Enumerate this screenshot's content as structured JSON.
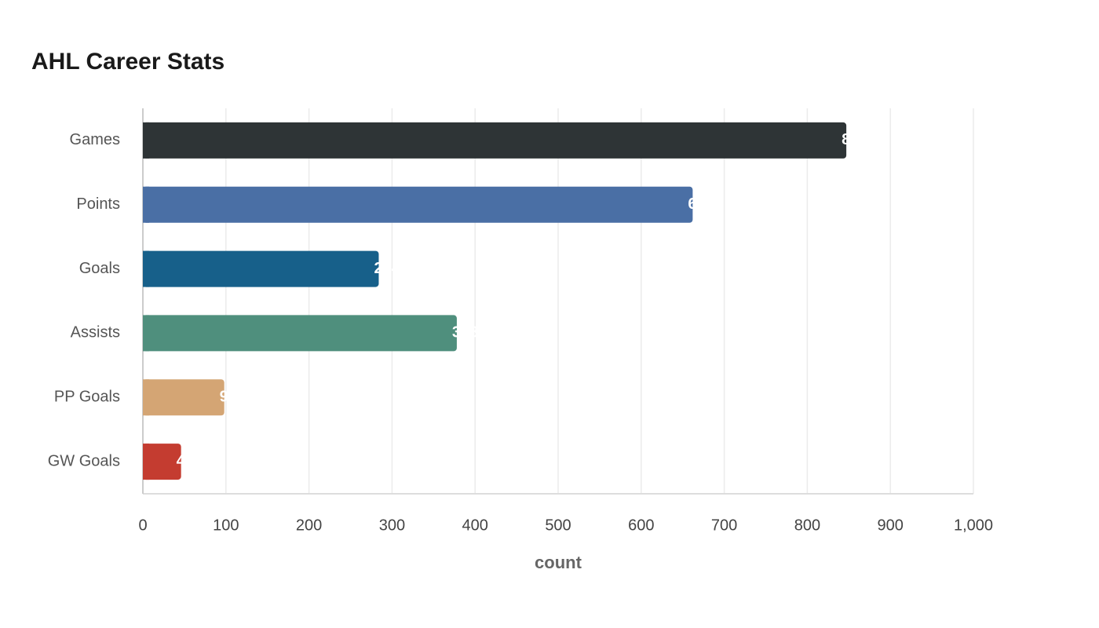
{
  "chart_data": {
    "type": "bar",
    "orientation": "horizontal",
    "title": "AHL Career Stats",
    "x_label": "count",
    "categories": [
      "Games",
      "Points",
      "Goals",
      "Assists",
      "PP Goals",
      "GW Goals"
    ],
    "values": [
      847,
      662,
      284,
      378,
      98,
      46
    ],
    "colors": [
      "#2e3436",
      "#4a6fa5",
      "#17608a",
      "#4f8f7d",
      "#d4a574",
      "#c43c30"
    ],
    "xlim": [
      0,
      1000
    ],
    "xticks": [
      0,
      100,
      200,
      300,
      400,
      500,
      600,
      700,
      800,
      900,
      {
        "value": 1000,
        "label": "1,000"
      }
    ],
    "grid": true
  }
}
